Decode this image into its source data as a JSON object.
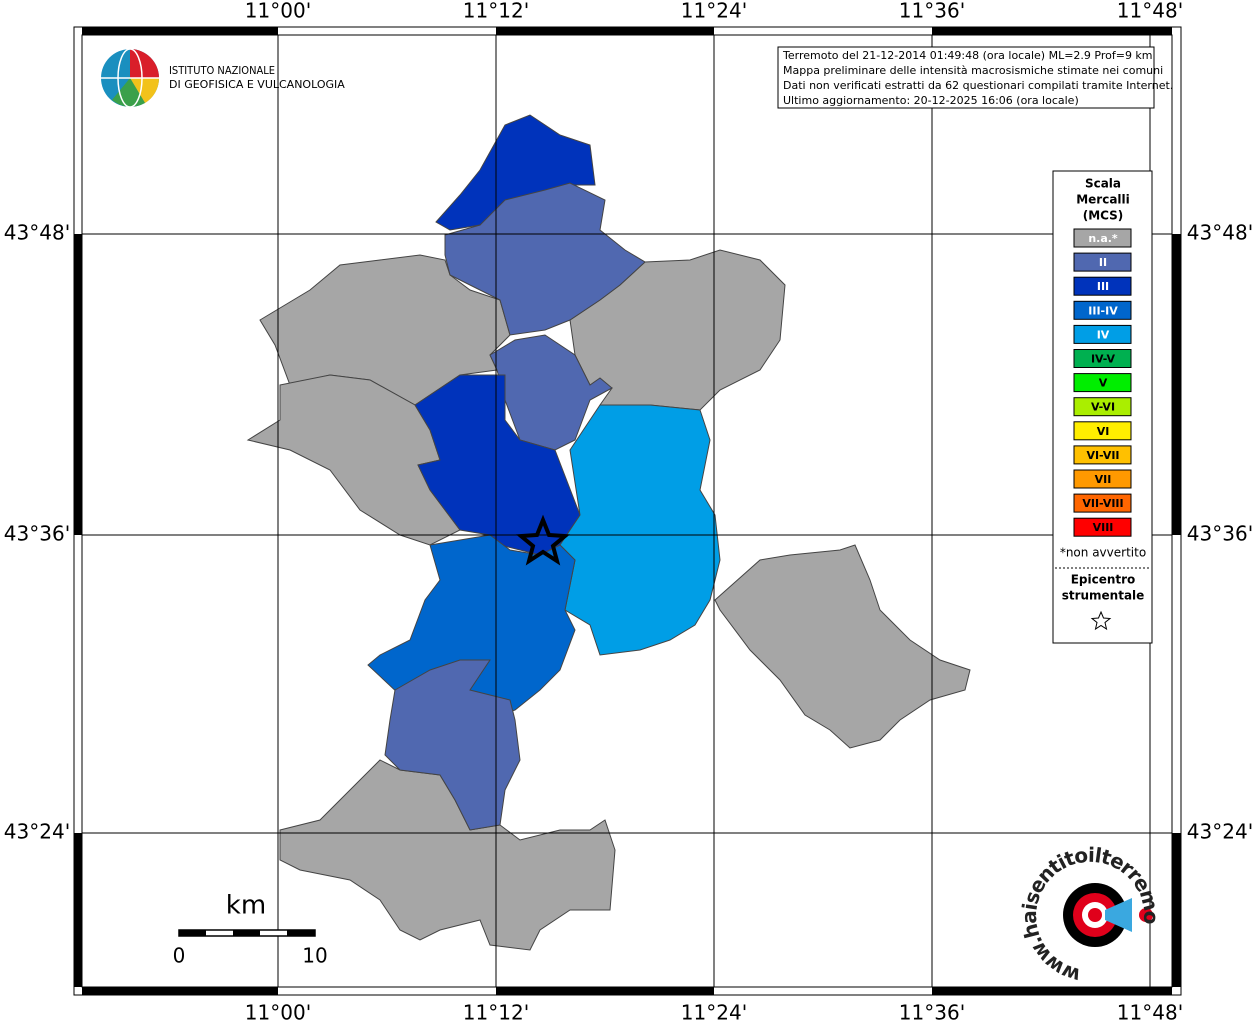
{
  "header": {
    "institute": [
      "ISTITUTO NAZIONALE",
      "DI GEOFISICA E VULCANOLOGIA"
    ],
    "info": [
      "Terremoto del 21-12-2014 01:49:48 (ora locale) ML=2.9 Prof=9 km",
      "Mappa preliminare delle intensità macrosismiche stimate nei comuni",
      "Dati non verificati estratti da 62 questionari compilati tramite Internet.",
      "Ultimo aggiornamento: 20-12-2025 16:06 (ora locale)"
    ]
  },
  "axes": {
    "longitude": [
      "11°00'",
      "11°12'",
      "11°24'",
      "11°36'",
      "11°48'"
    ],
    "latitude": [
      "43°48'",
      "43°36'",
      "43°24'"
    ]
  },
  "legend": {
    "title": [
      "Scala",
      "Mercalli",
      "(MCS)"
    ],
    "items": [
      {
        "label": "n.a.*",
        "color": "#a6a6a6"
      },
      {
        "label": "II",
        "color": "#5068b0"
      },
      {
        "label": "III",
        "color": "#0033bb"
      },
      {
        "label": "III-IV",
        "color": "#0066cc"
      },
      {
        "label": "IV",
        "color": "#009ee6"
      },
      {
        "label": "IV-V",
        "color": "#00b050"
      },
      {
        "label": "V",
        "color": "#00ee00"
      },
      {
        "label": "V-VI",
        "color": "#aaee00"
      },
      {
        "label": "VI",
        "color": "#ffee00"
      },
      {
        "label": "VI-VII",
        "color": "#ffc000"
      },
      {
        "label": "VII",
        "color": "#ff9900"
      },
      {
        "label": "VII-VIII",
        "color": "#ff6600"
      },
      {
        "label": "VIII",
        "color": "#ff0000"
      }
    ],
    "note": "*non avvertito",
    "epicenter": [
      "Epicentro",
      "strumentale"
    ]
  },
  "scale_bar": {
    "unit": "km",
    "labels": [
      "0",
      "10"
    ]
  },
  "logo": {
    "text": "www.haisentitoilterremoto.it"
  }
}
